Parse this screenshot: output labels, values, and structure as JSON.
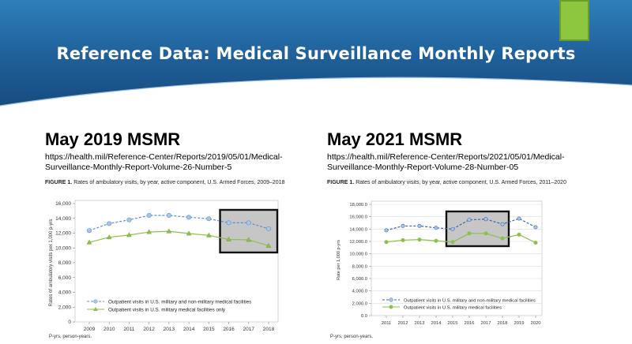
{
  "slide": {
    "title": "Reference Data: Medical Surveillance Monthly Reports",
    "accent_color": "#8dc63f",
    "banner_color": "#1f5f99"
  },
  "left": {
    "heading": "May 2019 MSMR",
    "url": "https://health.mil/Reference-Center/Reports/2019/05/01/Medical-Surveillance-Monthly-Report-Volume-26-Number-5",
    "figure_label": "FIGURE 1.",
    "figure_caption": "Rates of ambulatory visits, by year, active component, U.S. Armed Forces, 2009–2018",
    "footnote": "P-yrs, person-years."
  },
  "right": {
    "heading": "May 2021 MSMR",
    "url": "https://health.mil/Reference-Center/Reports/2021/05/01/Medical-Surveillance-Monthly-Report-Volume-28-Number-05",
    "figure_label": "FIGURE 1.",
    "figure_caption": "Rates of ambulatory visits, by year, active component, U.S. Armed Forces, 2011–2020",
    "footnote": "P-yrs, person-years."
  },
  "chart_data": [
    {
      "type": "line",
      "ylabel": "Rates of ambulatory visits per 1,000 p-yrs",
      "ylim": [
        0,
        16000
      ],
      "yticks": [
        "0",
        "2,000",
        "4,000",
        "6,000",
        "8,000",
        "10,000",
        "12,000",
        "14,000",
        "16,000"
      ],
      "x": [
        "2009",
        "2010",
        "2011",
        "2012",
        "2013",
        "2014",
        "2015",
        "2016",
        "2017",
        "2018"
      ],
      "legend_placement": "bottom-left",
      "highlight_box_years": [
        "2016",
        "2018"
      ],
      "series": [
        {
          "name": "Outpatient visits in U.S. military and non-military medical facilities",
          "values": [
            12350,
            13300,
            13800,
            14400,
            14400,
            14150,
            13950,
            13400,
            13400,
            12600
          ],
          "color": "#5b8fc9",
          "dash": true,
          "marker": "circle"
        },
        {
          "name": "Outpatient visits in U.S. military medical facilities only",
          "values": [
            10750,
            11450,
            11750,
            12150,
            12250,
            11950,
            11700,
            11150,
            11100,
            10300
          ],
          "color": "#8dbf4a",
          "dash": false,
          "marker": "triangle"
        }
      ]
    },
    {
      "type": "line",
      "ylabel": "Rate per 1,000 p-yrs",
      "ylim": [
        0,
        18000
      ],
      "yticks": [
        "0.0",
        "2,000.0",
        "4,000.0",
        "6,000.0",
        "8,000.0",
        "10,000.0",
        "12,000.0",
        "14,000.0",
        "16,000.0",
        "18,000.0"
      ],
      "x": [
        "2011",
        "2012",
        "2013",
        "2014",
        "2015",
        "2016",
        "2017",
        "2018",
        "2019",
        "2020"
      ],
      "legend_placement": "bottom-left",
      "highlight_box_years": [
        "2015",
        "2018"
      ],
      "series": [
        {
          "name": "Outpatient visits in U.S. military and non-military medical facilities",
          "values": [
            13800,
            14500,
            14500,
            14200,
            14000,
            15500,
            15600,
            14800,
            15700,
            14300
          ],
          "color": "#3a66a8",
          "dash": true,
          "marker": "circle"
        },
        {
          "name": "Outpatient visits in U.S. military medical facilities",
          "values": [
            11900,
            12200,
            12300,
            12100,
            11900,
            13300,
            13300,
            12500,
            13100,
            11800
          ],
          "color": "#8dbf4a",
          "dash": false,
          "marker": "circle"
        }
      ]
    }
  ]
}
